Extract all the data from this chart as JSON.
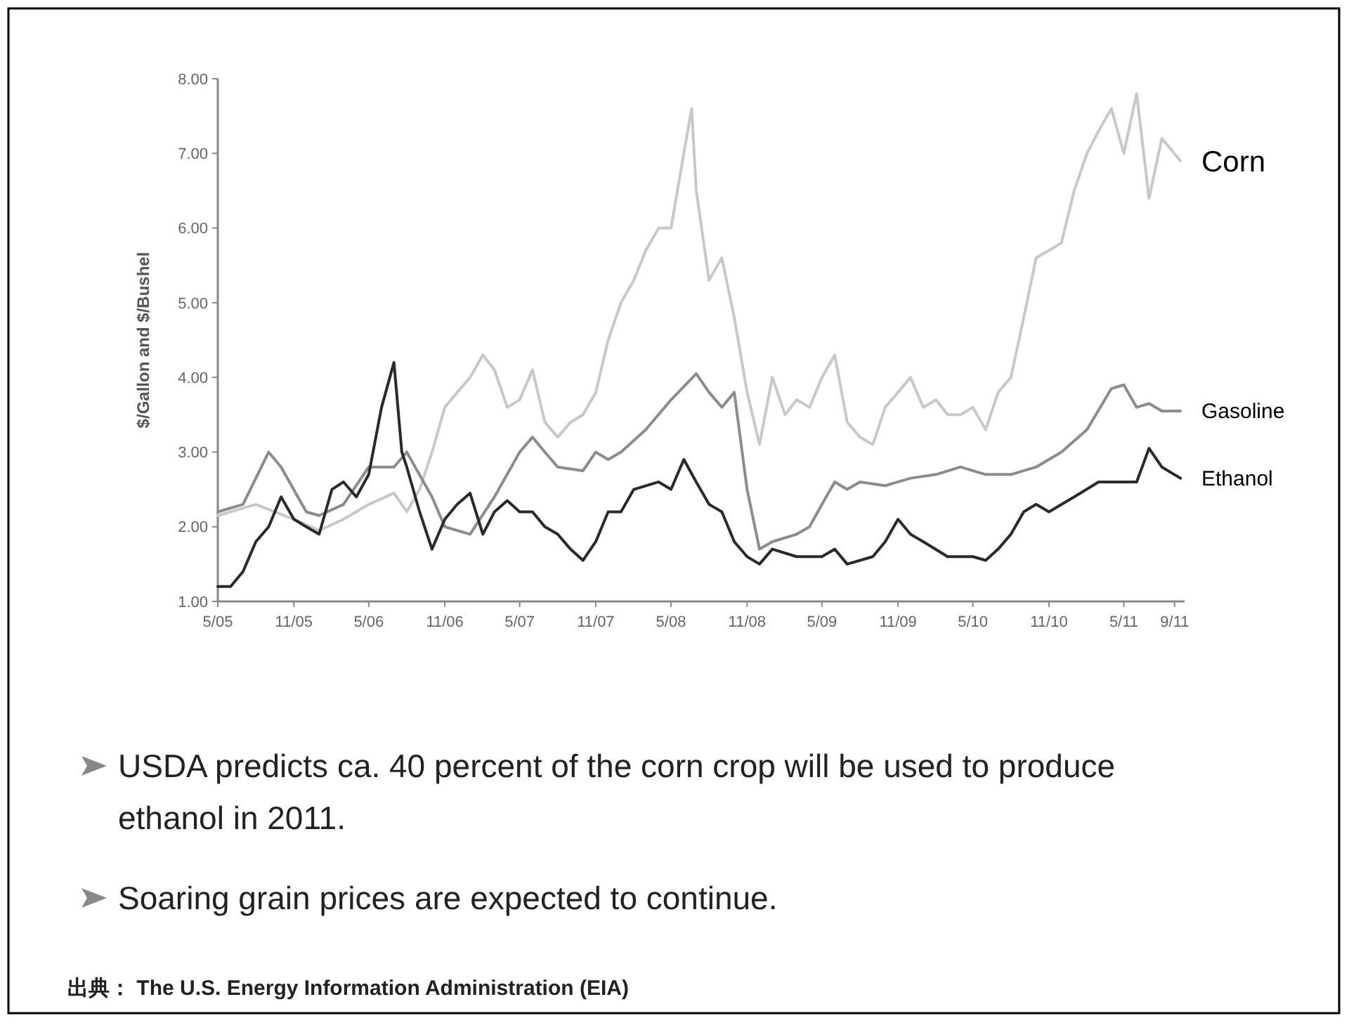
{
  "chart_data": {
    "type": "line",
    "ylabel": "$/Gallon and $/Bushel",
    "xlim": [
      "2005-05-01",
      "2011-09-25"
    ],
    "ylim": [
      1,
      8
    ],
    "yticks": [
      {
        "value": 1,
        "label": "1.00"
      },
      {
        "value": 2,
        "label": "2.00"
      },
      {
        "value": 3,
        "label": "3.00"
      },
      {
        "value": 4,
        "label": "4.00"
      },
      {
        "value": 5,
        "label": "5.00"
      },
      {
        "value": 6,
        "label": "6.00"
      },
      {
        "value": 7,
        "label": "7.00"
      },
      {
        "value": 8,
        "label": "8.00"
      }
    ],
    "xticks": [
      {
        "value": "2005-05-01",
        "label": "5/05"
      },
      {
        "value": "2005-11-01",
        "label": "11/05"
      },
      {
        "value": "2006-05-01",
        "label": "5/06"
      },
      {
        "value": "2006-11-01",
        "label": "11/06"
      },
      {
        "value": "2007-05-01",
        "label": "5/07"
      },
      {
        "value": "2007-11-01",
        "label": "11/07"
      },
      {
        "value": "2008-05-01",
        "label": "5/08"
      },
      {
        "value": "2008-11-01",
        "label": "11/08"
      },
      {
        "value": "2009-05-01",
        "label": "5/09"
      },
      {
        "value": "2009-11-01",
        "label": "11/09"
      },
      {
        "value": "2010-05-01",
        "label": "5/10"
      },
      {
        "value": "2010-11-01",
        "label": "11/10"
      },
      {
        "value": "2011-05-01",
        "label": "5/11"
      },
      {
        "value": "2011-09-01",
        "label": "9/11"
      }
    ],
    "grid": false,
    "marker": "none",
    "line_style": "solid",
    "series": [
      {
        "name": "Corn",
        "color": "#c8c8c8",
        "x": [
          "2005-05",
          "2005-08",
          "2005-11",
          "2006-01",
          "2006-03",
          "2006-05",
          "2006-07",
          "2006-08",
          "2006-09",
          "2006-10",
          "2006-11",
          "2006-12",
          "2007-01",
          "2007-02",
          "2007-03",
          "2007-04",
          "2007-05",
          "2007-06",
          "2007-07",
          "2007-08",
          "2007-09",
          "2007-10",
          "2007-11",
          "2007-12",
          "2008-01",
          "2008-02",
          "2008-03",
          "2008-04",
          "2008-05",
          "2008-06",
          "2008-06-20",
          "2008-07",
          "2008-08",
          "2008-09",
          "2008-10",
          "2008-11",
          "2008-12",
          "2009-01",
          "2009-02",
          "2009-03",
          "2009-04",
          "2009-05",
          "2009-06",
          "2009-07",
          "2009-08",
          "2009-09",
          "2009-10",
          "2009-11",
          "2009-12",
          "2010-01",
          "2010-02",
          "2010-03",
          "2010-04",
          "2010-05",
          "2010-06",
          "2010-07",
          "2010-08",
          "2010-09",
          "2010-10",
          "2010-11",
          "2010-12",
          "2011-01",
          "2011-02",
          "2011-03",
          "2011-04",
          "2011-05",
          "2011-06",
          "2011-07",
          "2011-08",
          "2011-09-15"
        ],
        "values": [
          2.15,
          2.3,
          2.1,
          1.95,
          2.1,
          2.3,
          2.45,
          2.2,
          2.5,
          3.0,
          3.6,
          3.8,
          4.0,
          4.3,
          4.1,
          3.6,
          3.7,
          4.1,
          3.4,
          3.2,
          3.4,
          3.5,
          3.8,
          4.5,
          5.0,
          5.3,
          5.7,
          6.0,
          6.0,
          7.0,
          7.6,
          6.5,
          5.3,
          5.6,
          4.8,
          3.8,
          3.1,
          4.0,
          3.5,
          3.7,
          3.6,
          4.0,
          4.3,
          3.4,
          3.2,
          3.1,
          3.6,
          3.8,
          4.0,
          3.6,
          3.7,
          3.5,
          3.5,
          3.6,
          3.3,
          3.8,
          4.0,
          4.8,
          5.6,
          5.7,
          5.8,
          6.5,
          7.0,
          7.3,
          7.6,
          7.0,
          7.8,
          6.4,
          7.2,
          6.9
        ]
      },
      {
        "name": "Gasoline",
        "color": "#8c8c8c",
        "x": [
          "2005-05",
          "2005-07",
          "2005-09",
          "2005-10",
          "2005-12",
          "2006-01",
          "2006-03",
          "2006-05",
          "2006-07",
          "2006-08",
          "2006-10",
          "2006-11",
          "2007-01",
          "2007-03",
          "2007-05",
          "2007-06",
          "2007-07",
          "2007-08",
          "2007-10",
          "2007-11",
          "2007-12",
          "2008-01",
          "2008-03",
          "2008-05",
          "2008-07",
          "2008-08",
          "2008-09",
          "2008-10",
          "2008-11",
          "2008-12",
          "2009-01",
          "2009-03",
          "2009-04",
          "2009-05",
          "2009-06",
          "2009-07",
          "2009-08",
          "2009-10",
          "2009-12",
          "2010-02",
          "2010-04",
          "2010-06",
          "2010-08",
          "2010-10",
          "2010-12",
          "2011-02",
          "2011-04",
          "2011-05",
          "2011-06",
          "2011-07",
          "2011-08",
          "2011-09-15"
        ],
        "values": [
          2.2,
          2.3,
          3.0,
          2.8,
          2.2,
          2.15,
          2.3,
          2.8,
          2.8,
          3.0,
          2.4,
          2.0,
          1.9,
          2.4,
          3.0,
          3.2,
          3.0,
          2.8,
          2.75,
          3.0,
          2.9,
          3.0,
          3.3,
          3.7,
          4.05,
          3.8,
          3.6,
          3.8,
          2.5,
          1.7,
          1.8,
          1.9,
          2.0,
          2.3,
          2.6,
          2.5,
          2.6,
          2.55,
          2.65,
          2.7,
          2.8,
          2.7,
          2.7,
          2.8,
          3.0,
          3.3,
          3.85,
          3.9,
          3.6,
          3.65,
          3.55,
          3.55
        ]
      },
      {
        "name": "Ethanol",
        "color": "#2a2a2a",
        "x": [
          "2005-05",
          "2005-06",
          "2005-07",
          "2005-08",
          "2005-09",
          "2005-10",
          "2005-11",
          "2005-12",
          "2006-01",
          "2006-02",
          "2006-03",
          "2006-04",
          "2006-05",
          "2006-06",
          "2006-07",
          "2006-07-20",
          "2006-08",
          "2006-09",
          "2006-10",
          "2006-11",
          "2006-12",
          "2007-01",
          "2007-02",
          "2007-03",
          "2007-04",
          "2007-05",
          "2007-06",
          "2007-07",
          "2007-08",
          "2007-09",
          "2007-10",
          "2007-11",
          "2007-12",
          "2008-01",
          "2008-02",
          "2008-04",
          "2008-05",
          "2008-06",
          "2008-07",
          "2008-08",
          "2008-09",
          "2008-10",
          "2008-11",
          "2008-12",
          "2009-01",
          "2009-03",
          "2009-05",
          "2009-06",
          "2009-07",
          "2009-09",
          "2009-10",
          "2009-11",
          "2009-12",
          "2010-01",
          "2010-03",
          "2010-05",
          "2010-06",
          "2010-07",
          "2010-08",
          "2010-09",
          "2010-10",
          "2010-11",
          "2011-01",
          "2011-03",
          "2011-05",
          "2011-06",
          "2011-07",
          "2011-08",
          "2011-09-15"
        ],
        "values": [
          1.2,
          1.2,
          1.4,
          1.8,
          2.0,
          2.4,
          2.1,
          2.0,
          1.9,
          2.5,
          2.6,
          2.4,
          2.7,
          3.6,
          4.2,
          3.0,
          2.8,
          2.2,
          1.7,
          2.1,
          2.3,
          2.45,
          1.9,
          2.2,
          2.35,
          2.2,
          2.2,
          2.0,
          1.9,
          1.7,
          1.55,
          1.8,
          2.2,
          2.2,
          2.5,
          2.6,
          2.5,
          2.9,
          2.6,
          2.3,
          2.2,
          1.8,
          1.6,
          1.5,
          1.7,
          1.6,
          1.6,
          1.7,
          1.5,
          1.6,
          1.8,
          2.1,
          1.9,
          1.8,
          1.6,
          1.6,
          1.55,
          1.7,
          1.9,
          2.2,
          2.3,
          2.2,
          2.4,
          2.6,
          2.6,
          2.6,
          3.05,
          2.8,
          2.65
        ]
      }
    ],
    "annotations": [
      "USDA predicts ca. 40 percent of the corn crop will be used to produce ethanol in 2011.",
      "Soaring grain prices are expected to continue.",
      "出典： The U.S. Energy Information Administration (EIA)"
    ]
  }
}
